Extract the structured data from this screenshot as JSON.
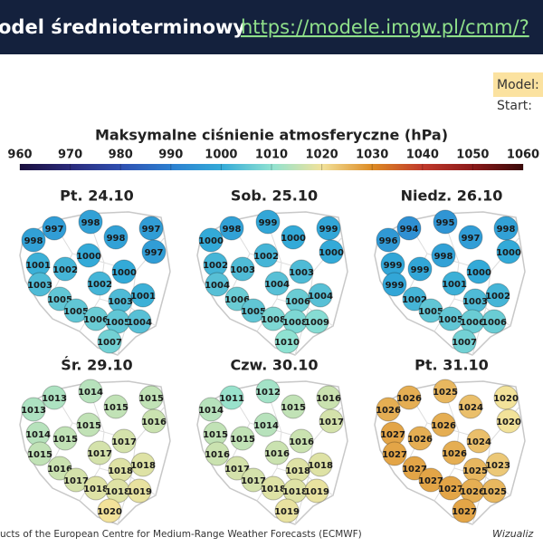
{
  "header": {
    "title": "odel średnioterminowy",
    "link": "https://modele.imgw.pl/cmm/?"
  },
  "info": {
    "model": "Model:",
    "start": "Start:"
  },
  "colorbar": {
    "title": "Maksymalne ciśnienie atmosferyczne (hPa)",
    "ticks": [
      960,
      970,
      980,
      990,
      1000,
      1010,
      1020,
      1030,
      1040,
      1050,
      1060
    ],
    "colors": [
      "#1a0f3e",
      "#2a2a7a",
      "#2f4fb0",
      "#2c7fd0",
      "#33aad8",
      "#8fe2d2",
      "#f2e29a",
      "#dd8b24",
      "#c0392b",
      "#8b1a1a",
      "#3a0a0a"
    ]
  },
  "maps": [
    {
      "title": "Pt. 24.10",
      "values": [
        997,
        998,
        997,
        998,
        998,
        997,
        1000,
        1001,
        1002,
        1000,
        1003,
        1002,
        1001,
        1005,
        1003,
        1005,
        1006,
        1005,
        1004,
        1007
      ]
    },
    {
      "title": "Sob. 25.10",
      "values": [
        998,
        999,
        999,
        1000,
        1000,
        1000,
        1002,
        1002,
        1003,
        1003,
        1004,
        1004,
        1004,
        1006,
        1006,
        1005,
        1008,
        1008,
        1009,
        1010
      ]
    },
    {
      "title": "Niedz. 26.10",
      "values": [
        994,
        995,
        998,
        996,
        997,
        1000,
        998,
        999,
        999,
        1000,
        999,
        1001,
        1002,
        1002,
        1003,
        1005,
        1005,
        1006,
        1006,
        1007
      ]
    },
    {
      "title": "Śr. 29.10",
      "values": [
        1013,
        1014,
        1015,
        1013,
        1015,
        1016,
        1015,
        1014,
        1015,
        1017,
        1015,
        1017,
        1018,
        1016,
        1018,
        1017,
        1018,
        1018,
        1019,
        1020
      ]
    },
    {
      "title": "Czw. 30.10",
      "values": [
        1011,
        1012,
        1016,
        1014,
        1015,
        1017,
        1014,
        1015,
        1015,
        1016,
        1016,
        1016,
        1018,
        1017,
        1018,
        1017,
        1018,
        1018,
        1019,
        1019
      ]
    },
    {
      "title": "Pt. 31.10",
      "values": [
        1026,
        1025,
        1020,
        1026,
        1024,
        1020,
        1026,
        1027,
        1026,
        1024,
        1027,
        1026,
        1023,
        1027,
        1025,
        1027,
        1027,
        1026,
        1025,
        1027
      ]
    }
  ],
  "footer": {
    "source": "ucts of the European Centre for Medium-Range Weather Forecasts (ECMWF)",
    "credit": "Wizualiz"
  }
}
